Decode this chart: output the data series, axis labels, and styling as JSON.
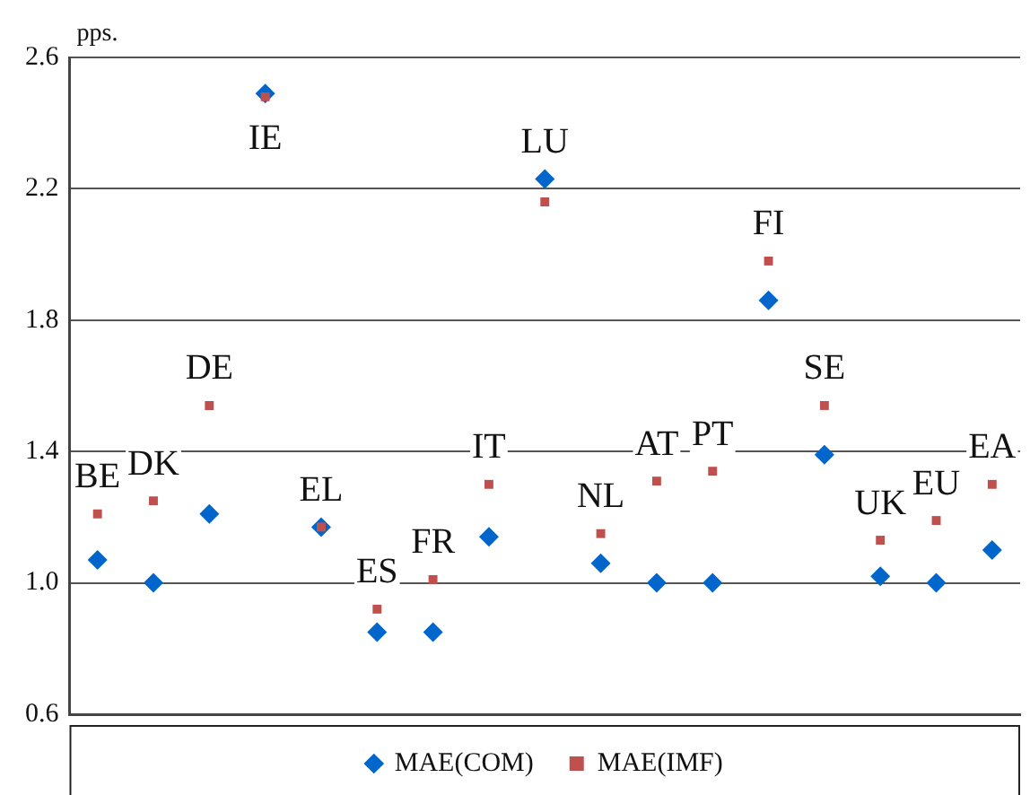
{
  "chart_data": {
    "type": "scatter",
    "ylabel": "pps.",
    "categories": [
      "BE",
      "DK",
      "DE",
      "IE",
      "EL",
      "ES",
      "FR",
      "IT",
      "LU",
      "NL",
      "AT",
      "PT",
      "FI",
      "SE",
      "UK",
      "EU",
      "EA"
    ],
    "series": [
      {
        "name": "MAE(COM)",
        "color": "#0066cc",
        "marker": "diamond",
        "values": [
          1.07,
          1.0,
          1.21,
          2.49,
          1.17,
          0.85,
          0.85,
          1.14,
          2.23,
          1.06,
          1.0,
          1.0,
          1.86,
          1.39,
          1.02,
          1.0,
          1.1
        ]
      },
      {
        "name": "MAE(IMF)",
        "color": "#c0504d",
        "marker": "square",
        "values": [
          1.21,
          1.25,
          1.54,
          2.48,
          1.17,
          0.92,
          1.01,
          1.3,
          2.16,
          1.15,
          1.31,
          1.34,
          1.98,
          1.54,
          1.13,
          1.19,
          1.3
        ]
      }
    ],
    "ylim": [
      0.6,
      2.6
    ],
    "yticks": [
      0.6,
      {
        "value": 1.0,
        "label": "1.0"
      },
      1.4,
      1.8,
      2.2,
      2.6
    ],
    "grid": "y",
    "legend": "bottom",
    "tick_labels": "y"
  }
}
